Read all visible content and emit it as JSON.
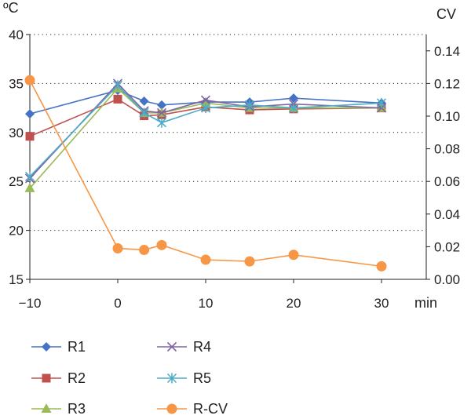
{
  "chart_data": {
    "type": "line",
    "x": [
      -10,
      0,
      3,
      5,
      10,
      15,
      20,
      30
    ],
    "xlabel": "min",
    "xlim": [
      -10,
      35
    ],
    "xticks": [
      -10,
      0,
      10,
      20,
      30
    ],
    "xtick_labels": [
      "−10",
      "0",
      "10",
      "20",
      "30"
    ],
    "ylabel_left": "ºC",
    "ylim_left": [
      15,
      40
    ],
    "yticks_left": [
      15,
      20,
      25,
      30,
      35,
      40
    ],
    "ylabel_right": "CV",
    "ylim_right": [
      0.0,
      0.15
    ],
    "yticks_right": [
      "0.00",
      "0.02",
      "0.04",
      "0.06",
      "0.08",
      "0.10",
      "0.12",
      "0.14"
    ],
    "grid": "horizontal dotted",
    "legend_position": "bottom",
    "series": [
      {
        "name": "R1",
        "axis": "left",
        "marker": "diamond",
        "color": "#4472c4",
        "values": [
          31.9,
          34.3,
          33.2,
          32.8,
          33.1,
          33.1,
          33.5,
          33.0
        ]
      },
      {
        "name": "R2",
        "axis": "left",
        "marker": "square",
        "color": "#c0504d",
        "values": [
          29.6,
          33.4,
          31.7,
          31.8,
          32.6,
          32.3,
          32.4,
          32.5
        ]
      },
      {
        "name": "R3",
        "axis": "left",
        "marker": "triangle",
        "color": "#9bbb59",
        "values": [
          24.3,
          34.5,
          32.0,
          32.0,
          33.0,
          32.5,
          32.5,
          32.5
        ]
      },
      {
        "name": "R4",
        "axis": "left",
        "marker": "x",
        "color": "#8064a2",
        "values": [
          25.3,
          35.0,
          32.2,
          32.0,
          33.3,
          32.6,
          32.9,
          32.5
        ]
      },
      {
        "name": "R5",
        "axis": "left",
        "marker": "star",
        "color": "#4bacc6",
        "values": [
          25.5,
          34.8,
          32.0,
          31.0,
          32.5,
          32.8,
          32.5,
          33.0
        ]
      },
      {
        "name": "R-CV",
        "axis": "right",
        "marker": "circle",
        "color": "#f79646",
        "values": [
          0.122,
          0.019,
          0.018,
          0.021,
          0.012,
          0.011,
          0.015,
          0.008
        ]
      }
    ]
  }
}
